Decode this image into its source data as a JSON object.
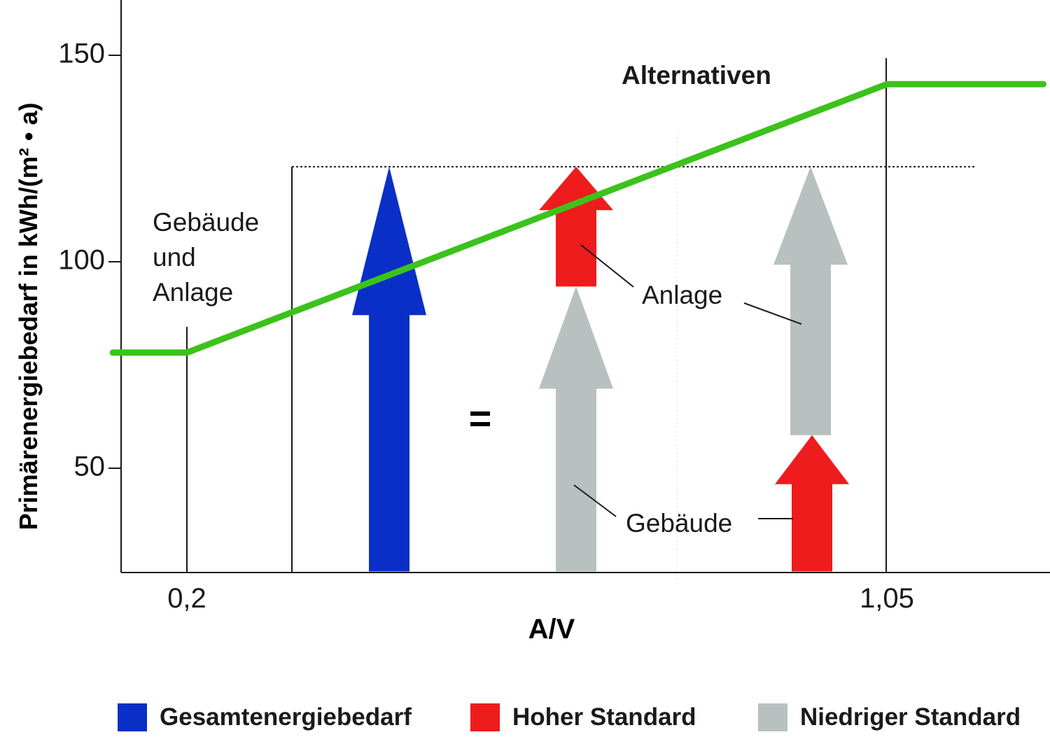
{
  "chart_data": {
    "type": "line",
    "xlabel": "A/V",
    "ylabel": "Primärenergiebedarf in kWh/(m² • a)",
    "ylim": [
      25,
      150
    ],
    "y_ticks": [
      150,
      100,
      50
    ],
    "x_ticks": [
      "0,2",
      "1,05"
    ],
    "series": [
      {
        "x": [
          0.11,
          0.2,
          1.05,
          1.24
        ],
        "y": [
          78,
          78,
          143,
          143
        ]
      }
    ],
    "reference_value": 123,
    "arrows": [
      {
        "legend": "Gesamtenergiebedarf",
        "from": 25,
        "to": 123
      },
      {
        "legend": "Niedriger Standard",
        "from": 25,
        "to": 94
      },
      {
        "legend": "Hoher Standard",
        "from": 94,
        "to": 123
      },
      {
        "legend": "Hoher Standard",
        "from": 25,
        "to": 58
      },
      {
        "legend": "Niedriger Standard",
        "from": 58,
        "to": 123
      }
    ],
    "annotations": {
      "alternatives": "Alternativen",
      "building_plant": [
        "Gebäude",
        "und",
        "Anlage"
      ],
      "plant": "Anlage",
      "building": "Gebäude",
      "equals": "="
    },
    "legend": [
      {
        "label": "Gesamtenergiebedarf",
        "color": "#0a2fc6"
      },
      {
        "label": "Hoher Standard",
        "color": "#ee1c1c"
      },
      {
        "label": "Niedriger Standard",
        "color": "#b8c1c0"
      }
    ],
    "colors": {
      "line": "#3cc21c",
      "total": "#0a2fc6",
      "high": "#ee1c1c",
      "low": "#b8c1c0"
    }
  }
}
